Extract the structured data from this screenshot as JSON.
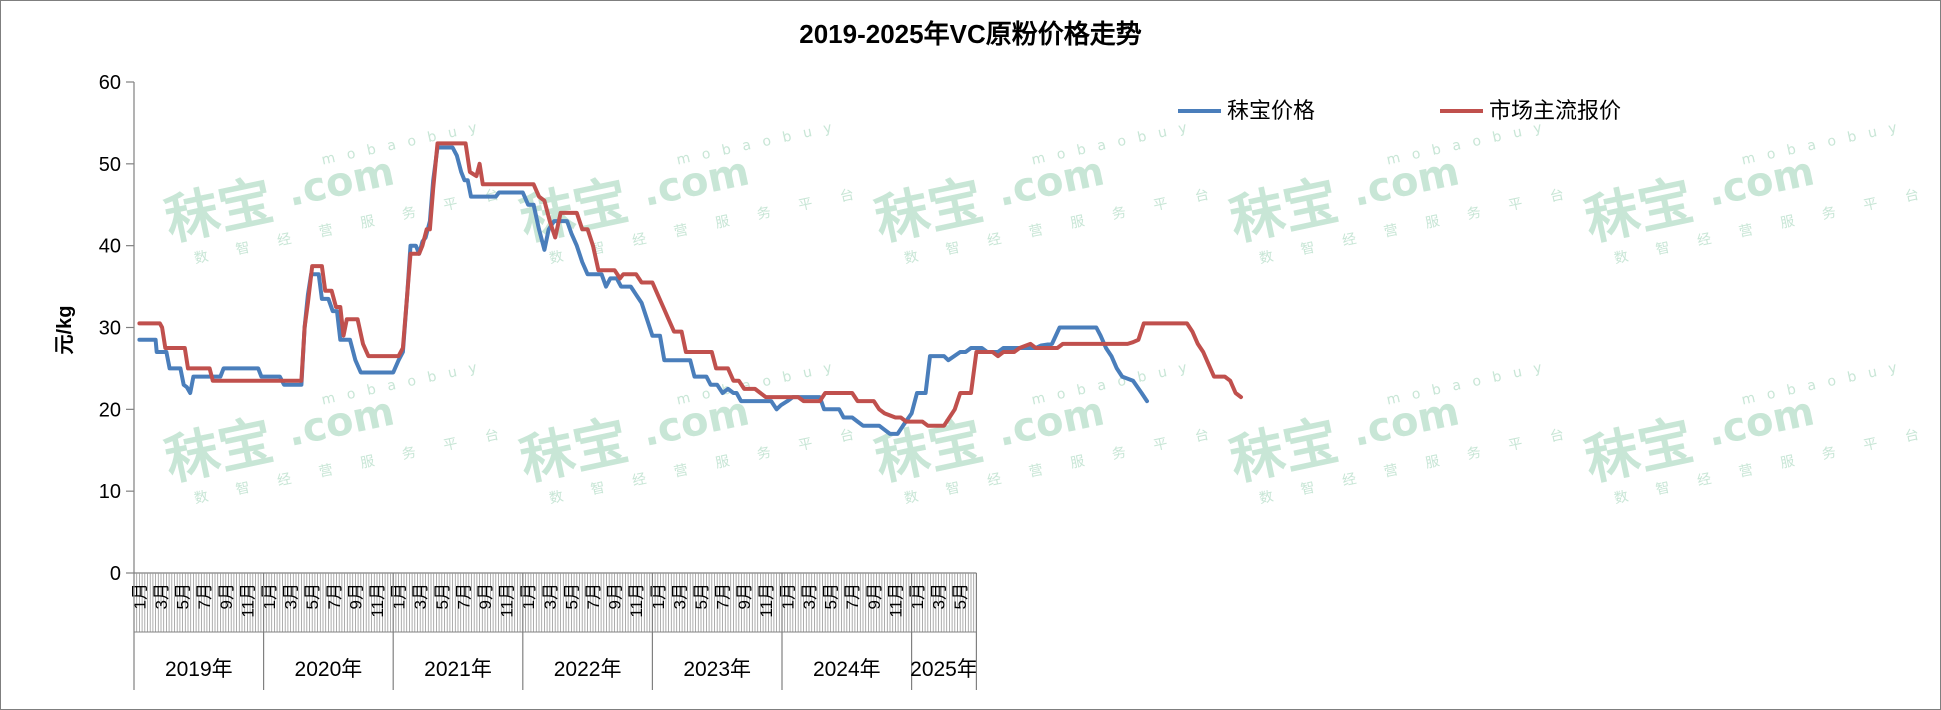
{
  "watermark": {
    "brand_cn": "秣宝",
    "brand_en": ".com",
    "brand_top": "mobaobuy",
    "slogan": "数 智 经 营 服 务 平 台"
  },
  "chart_data": {
    "type": "line",
    "title": "2019-2025年VC原粉价格走势",
    "ylabel": "元/kg",
    "xlabel": "",
    "ylim": [
      0,
      60
    ],
    "yticks": [
      0,
      10,
      20,
      30,
      40,
      50,
      60
    ],
    "grid": false,
    "legend_position": "top-right",
    "year_groups": [
      {
        "label": "2019年",
        "months": [
          "1月",
          "",
          "3月",
          "",
          "5月",
          "",
          "7月",
          "",
          "9月",
          "",
          "11月",
          ""
        ]
      },
      {
        "label": "2020年",
        "months": [
          "1月",
          "",
          "3月",
          "",
          "5月",
          "",
          "7月",
          "",
          "9月",
          "",
          "11月",
          ""
        ]
      },
      {
        "label": "2021年",
        "months": [
          "1月",
          "",
          "3月",
          "",
          "5月",
          "",
          "7月",
          "",
          "9月",
          "",
          "11月",
          ""
        ]
      },
      {
        "label": "2022年",
        "months": [
          "1月",
          "",
          "3月",
          "",
          "5月",
          "",
          "7月",
          "",
          "9月",
          "",
          "11月",
          ""
        ]
      },
      {
        "label": "2023年",
        "months": [
          "1月",
          "",
          "3月",
          "",
          "5月",
          "",
          "7月",
          "",
          "9月",
          "",
          "11月",
          ""
        ]
      },
      {
        "label": "2024年",
        "months": [
          "1月",
          "",
          "3月",
          "",
          "5月",
          "",
          "7月",
          "",
          "9月",
          "",
          "11月",
          ""
        ]
      },
      {
        "label": "2025年",
        "months": [
          "1月",
          "",
          "3月",
          "",
          "5月",
          ""
        ]
      }
    ],
    "series": [
      {
        "name": "秣宝价格",
        "color": "#4a7ebb",
        "points": [
          [
            0,
            28.5
          ],
          [
            1.5,
            28.5
          ],
          [
            1.6,
            27
          ],
          [
            2.5,
            27
          ],
          [
            2.8,
            25
          ],
          [
            3.8,
            25
          ],
          [
            4.1,
            23
          ],
          [
            4.4,
            22.7
          ],
          [
            4.7,
            22
          ],
          [
            5,
            24
          ],
          [
            7.5,
            24
          ],
          [
            7.8,
            25
          ],
          [
            11,
            25
          ],
          [
            11.3,
            24
          ],
          [
            13,
            24
          ],
          [
            13.4,
            23
          ],
          [
            15,
            23
          ],
          [
            15.3,
            30
          ],
          [
            15.6,
            34
          ],
          [
            15.9,
            36.5
          ],
          [
            16.6,
            36.5
          ],
          [
            16.9,
            33.5
          ],
          [
            17.5,
            33.5
          ],
          [
            17.9,
            32
          ],
          [
            18.3,
            32
          ],
          [
            18.6,
            28.5
          ],
          [
            19.5,
            28.5
          ],
          [
            20,
            26
          ],
          [
            20.5,
            24.5
          ],
          [
            23.5,
            24.5
          ],
          [
            24,
            26
          ],
          [
            24.4,
            27
          ],
          [
            24.8,
            34
          ],
          [
            25.1,
            40
          ],
          [
            25.6,
            40
          ],
          [
            25.9,
            39
          ],
          [
            26.2,
            40.5
          ],
          [
            26.5,
            41
          ],
          [
            26.9,
            43
          ],
          [
            27.2,
            48
          ],
          [
            27.6,
            52
          ],
          [
            29,
            52
          ],
          [
            29.4,
            51
          ],
          [
            29.8,
            49
          ],
          [
            30.1,
            48
          ],
          [
            30.4,
            48
          ],
          [
            30.7,
            46
          ],
          [
            33,
            46
          ],
          [
            33.3,
            46.5
          ],
          [
            35.5,
            46.5
          ],
          [
            36,
            45
          ],
          [
            36.5,
            45
          ],
          [
            37,
            42
          ],
          [
            37.5,
            39.5
          ],
          [
            37.9,
            42
          ],
          [
            38.4,
            43
          ],
          [
            39.6,
            43
          ],
          [
            40,
            41.5
          ],
          [
            40.5,
            40
          ],
          [
            41,
            38
          ],
          [
            41.5,
            36.5
          ],
          [
            42.8,
            36.5
          ],
          [
            43.2,
            35
          ],
          [
            43.6,
            36
          ],
          [
            44.2,
            36
          ],
          [
            44.6,
            35
          ],
          [
            45.5,
            35
          ],
          [
            46,
            34
          ],
          [
            46.5,
            33
          ],
          [
            47,
            31
          ],
          [
            47.5,
            29
          ],
          [
            48.2,
            29
          ],
          [
            48.6,
            26
          ],
          [
            51,
            26
          ],
          [
            51.4,
            24
          ],
          [
            52.5,
            24
          ],
          [
            52.9,
            23
          ],
          [
            53.5,
            23
          ],
          [
            54,
            22
          ],
          [
            54.5,
            22.5
          ],
          [
            55,
            22
          ],
          [
            55.3,
            22
          ],
          [
            55.7,
            21
          ],
          [
            58.5,
            21
          ],
          [
            59,
            20
          ],
          [
            59.4,
            20.5
          ],
          [
            60,
            21
          ],
          [
            60.5,
            21.5
          ],
          [
            63,
            21.5
          ],
          [
            63.4,
            20
          ],
          [
            64.8,
            20
          ],
          [
            65.2,
            19
          ],
          [
            66,
            19
          ],
          [
            66.5,
            18.5
          ],
          [
            67,
            18
          ],
          [
            68.5,
            18
          ],
          [
            69,
            17.5
          ],
          [
            69.5,
            17
          ],
          [
            70.2,
            17
          ],
          [
            70.7,
            18
          ],
          [
            71.5,
            19.5
          ],
          [
            72,
            22
          ],
          [
            72.8,
            22
          ],
          [
            73.2,
            26.5
          ],
          [
            74.5,
            26.5
          ],
          [
            74.9,
            26
          ],
          [
            76,
            27
          ],
          [
            76.5,
            27
          ],
          [
            77,
            27.5
          ],
          [
            78,
            27.5
          ],
          [
            78.5,
            27
          ],
          [
            79.5,
            27
          ],
          [
            80,
            27.5
          ],
          [
            83,
            27.5
          ],
          [
            83.5,
            27.8
          ],
          [
            84.5,
            28
          ],
          [
            85.2,
            30
          ],
          [
            88.6,
            30
          ],
          [
            89,
            29
          ],
          [
            89.5,
            27.5
          ],
          [
            90,
            26.5
          ],
          [
            90.5,
            25
          ],
          [
            91,
            24
          ],
          [
            92,
            23.5
          ],
          [
            92.8,
            22
          ],
          [
            93.3,
            21
          ]
        ]
      },
      {
        "name": "市场主流报价",
        "color": "#c0504d",
        "points": [
          [
            0,
            30.5
          ],
          [
            1.9,
            30.5
          ],
          [
            2.1,
            30
          ],
          [
            2.4,
            27.5
          ],
          [
            3.3,
            27.5
          ],
          [
            3.6,
            27.5
          ],
          [
            4.2,
            27.5
          ],
          [
            4.5,
            25
          ],
          [
            6.5,
            25
          ],
          [
            6.8,
            23.5
          ],
          [
            13,
            23.5
          ],
          [
            15,
            23.5
          ],
          [
            15.3,
            30
          ],
          [
            15.6,
            33
          ],
          [
            16,
            37.5
          ],
          [
            16.9,
            37.5
          ],
          [
            17.2,
            34.5
          ],
          [
            17.8,
            34.5
          ],
          [
            18.2,
            32.5
          ],
          [
            18.6,
            32.5
          ],
          [
            18.9,
            29
          ],
          [
            19.2,
            31
          ],
          [
            20.2,
            31
          ],
          [
            20.7,
            28
          ],
          [
            21.2,
            26.5
          ],
          [
            24,
            26.5
          ],
          [
            24.4,
            27.5
          ],
          [
            24.8,
            34
          ],
          [
            25.1,
            39
          ],
          [
            25.9,
            39
          ],
          [
            26.2,
            40
          ],
          [
            26.6,
            42
          ],
          [
            26.9,
            42
          ],
          [
            27.2,
            47
          ],
          [
            27.6,
            52.5
          ],
          [
            30.2,
            52.5
          ],
          [
            30.6,
            49
          ],
          [
            31.2,
            48.5
          ],
          [
            31.5,
            50
          ],
          [
            31.8,
            47.5
          ],
          [
            36.5,
            47.5
          ],
          [
            37,
            46
          ],
          [
            37.5,
            45.5
          ],
          [
            38,
            43
          ],
          [
            38.5,
            41
          ],
          [
            39,
            44
          ],
          [
            40.5,
            44
          ],
          [
            41,
            42
          ],
          [
            41.5,
            42
          ],
          [
            42,
            40
          ],
          [
            42.5,
            37
          ],
          [
            44,
            37
          ],
          [
            44.5,
            36
          ],
          [
            44.8,
            36.5
          ],
          [
            46,
            36.5
          ],
          [
            46.5,
            35.5
          ],
          [
            47.5,
            35.5
          ],
          [
            48,
            34
          ],
          [
            48.5,
            32.5
          ],
          [
            49,
            31
          ],
          [
            49.5,
            29.5
          ],
          [
            50.2,
            29.5
          ],
          [
            50.6,
            27
          ],
          [
            53,
            27
          ],
          [
            53.4,
            25
          ],
          [
            54.5,
            25
          ],
          [
            55,
            23.5
          ],
          [
            55.5,
            23.5
          ],
          [
            56,
            22.5
          ],
          [
            57,
            22.5
          ],
          [
            57.5,
            22
          ],
          [
            58,
            21.5
          ],
          [
            61,
            21.5
          ],
          [
            61.5,
            21
          ],
          [
            62,
            21
          ],
          [
            62.5,
            21
          ],
          [
            63,
            21
          ],
          [
            63.5,
            22
          ],
          [
            66,
            22
          ],
          [
            66.5,
            21
          ],
          [
            68,
            21
          ],
          [
            68.5,
            20
          ],
          [
            69,
            19.5
          ],
          [
            70,
            19
          ],
          [
            70.5,
            19
          ],
          [
            71,
            18.5
          ],
          [
            72.5,
            18.5
          ],
          [
            73,
            18
          ],
          [
            74.5,
            18
          ],
          [
            75,
            19
          ],
          [
            75.5,
            20
          ],
          [
            76,
            22
          ],
          [
            77,
            22
          ],
          [
            77.5,
            27
          ],
          [
            79,
            27
          ],
          [
            79.5,
            26.5
          ],
          [
            80,
            27
          ],
          [
            81,
            27
          ],
          [
            81.5,
            27.5
          ],
          [
            82.5,
            28
          ],
          [
            83,
            27.5
          ],
          [
            85,
            27.5
          ],
          [
            85.5,
            28
          ],
          [
            90,
            28
          ],
          [
            90.5,
            28
          ],
          [
            91.5,
            28
          ],
          [
            92,
            28.2
          ],
          [
            92.5,
            28.5
          ],
          [
            93,
            30.5
          ],
          [
            97,
            30.5
          ],
          [
            97.5,
            29.5
          ],
          [
            98,
            28
          ],
          [
            98.5,
            27
          ],
          [
            99,
            25.5
          ],
          [
            99.5,
            24
          ],
          [
            100.5,
            24
          ],
          [
            101,
            23.5
          ],
          [
            101.5,
            22
          ],
          [
            102,
            21.5
          ]
        ]
      }
    ]
  }
}
